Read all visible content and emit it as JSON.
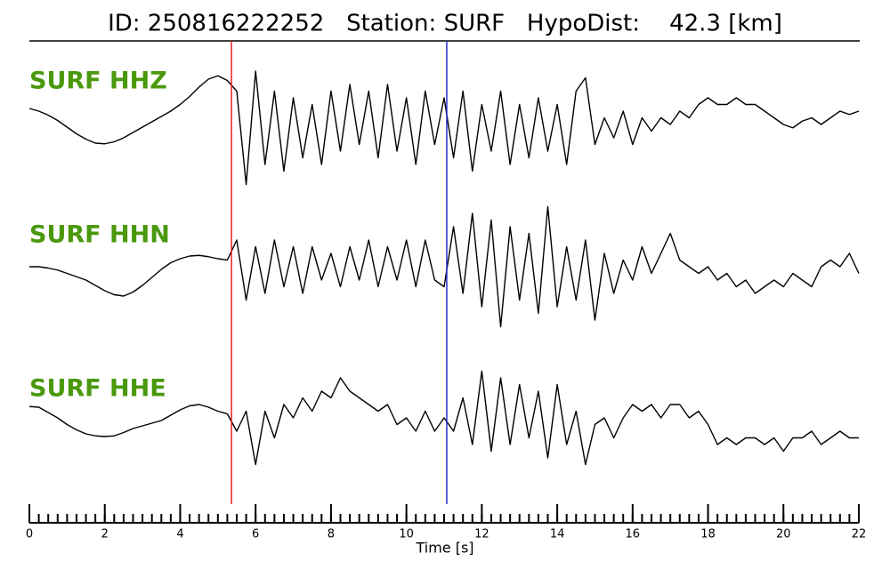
{
  "chart_data": {
    "type": "line",
    "title": "ID: 250816222252   Station: SURF   HypoDist:    42.3 [km]",
    "xlabel": "Time [s]",
    "xlim": [
      0,
      22
    ],
    "xticks": [
      0,
      2,
      4,
      6,
      8,
      10,
      12,
      14,
      16,
      18,
      20,
      22
    ],
    "xminorticks": [
      0,
      0.25,
      0.5,
      0.75,
      1,
      1.25,
      1.5,
      1.75,
      2,
      2.25,
      2.5,
      2.75,
      3,
      3.25,
      3.5,
      3.75,
      4,
      4.25,
      4.5,
      4.75,
      5,
      5.25,
      5.5,
      5.75,
      6,
      6.25,
      6.5,
      6.75,
      7,
      7.25,
      7.5,
      7.75,
      8,
      8.25,
      8.5,
      8.75,
      9,
      9.25,
      9.5,
      9.75,
      10,
      10.25,
      10.5,
      10.75,
      11,
      11.25,
      11.5,
      11.75,
      12,
      12.25,
      12.5,
      12.75,
      13,
      13.25,
      13.5,
      13.75,
      14,
      14.25,
      14.5,
      14.75,
      15,
      15.25,
      15.5,
      15.75,
      16,
      16.25,
      16.5,
      16.75,
      17,
      17.25,
      17.5,
      17.75,
      18,
      18.25,
      18.5,
      18.75,
      19,
      19.25,
      19.5,
      19.75,
      20,
      20.25,
      20.5,
      20.75,
      21,
      21.25,
      21.5,
      21.75,
      22
    ],
    "ylim": [
      -1,
      1
    ],
    "label_color": "#4a990c",
    "x": [
      0,
      0.25,
      0.5,
      0.75,
      1,
      1.25,
      1.5,
      1.75,
      2,
      2.25,
      2.5,
      2.75,
      3,
      3.25,
      3.5,
      3.75,
      4,
      4.25,
      4.5,
      4.75,
      5,
      5.25,
      5.5,
      5.75,
      6,
      6.25,
      6.5,
      6.75,
      7,
      7.25,
      7.5,
      7.75,
      8,
      8.25,
      8.5,
      8.75,
      9,
      9.25,
      9.5,
      9.75,
      10,
      10.25,
      10.5,
      10.75,
      11,
      11.25,
      11.5,
      11.75,
      12,
      12.25,
      12.5,
      12.75,
      13,
      13.25,
      13.5,
      13.75,
      14,
      14.25,
      14.5,
      14.75,
      15,
      15.25,
      15.5,
      15.75,
      16,
      16.25,
      16.5,
      16.75,
      17,
      17.25,
      17.5,
      17.75,
      18,
      18.25,
      18.5,
      18.75,
      19,
      19.25,
      19.5,
      19.75,
      20,
      20.25,
      20.5,
      20.75,
      21,
      21.25,
      21.5,
      21.75,
      22
    ],
    "series": [
      {
        "name": "SURF HHZ",
        "color": "#000000",
        "values": [
          0.24,
          0.2,
          0.14,
          0.06,
          -0.04,
          -0.14,
          -0.22,
          -0.28,
          -0.29,
          -0.26,
          -0.2,
          -0.12,
          -0.04,
          0.04,
          0.12,
          0.2,
          0.3,
          0.42,
          0.56,
          0.68,
          0.73,
          0.66,
          0.5,
          -0.9,
          0.8,
          -0.6,
          0.5,
          -0.7,
          0.4,
          -0.5,
          0.3,
          -0.6,
          0.5,
          -0.4,
          0.6,
          -0.3,
          0.5,
          -0.5,
          0.6,
          -0.4,
          0.4,
          -0.6,
          0.5,
          -0.3,
          0.4,
          -0.5,
          0.5,
          -0.7,
          0.3,
          -0.4,
          0.5,
          -0.6,
          0.3,
          -0.5,
          0.4,
          -0.4,
          0.3,
          -0.6,
          0.5,
          0.7,
          -0.3,
          0.1,
          -0.2,
          0.2,
          -0.3,
          0.1,
          -0.1,
          0.1,
          0.0,
          0.2,
          0.1,
          0.3,
          0.4,
          0.3,
          0.3,
          0.4,
          0.3,
          0.3,
          0.2,
          0.1,
          0.0,
          -0.05,
          0.05,
          0.1,
          0.0,
          0.1,
          0.2,
          0.15,
          0.2
        ]
      },
      {
        "name": "SURF HHN",
        "color": "#000000",
        "values": [
          0.0,
          0.0,
          -0.02,
          -0.05,
          -0.1,
          -0.15,
          -0.2,
          -0.28,
          -0.36,
          -0.42,
          -0.44,
          -0.38,
          -0.28,
          -0.16,
          -0.04,
          0.06,
          0.12,
          0.16,
          0.17,
          0.15,
          0.12,
          0.1,
          0.4,
          -0.5,
          0.3,
          -0.4,
          0.4,
          -0.3,
          0.3,
          -0.4,
          0.3,
          -0.2,
          0.2,
          -0.3,
          0.3,
          -0.2,
          0.4,
          -0.3,
          0.3,
          -0.2,
          0.4,
          -0.3,
          0.4,
          -0.2,
          -0.3,
          0.6,
          -0.4,
          0.8,
          -0.6,
          0.7,
          -0.9,
          0.6,
          -0.5,
          0.5,
          -0.7,
          0.9,
          -0.6,
          0.3,
          -0.5,
          0.4,
          -0.8,
          0.2,
          -0.4,
          0.1,
          -0.2,
          0.3,
          -0.1,
          0.2,
          0.5,
          0.1,
          0.0,
          -0.1,
          0.0,
          -0.2,
          -0.1,
          -0.3,
          -0.2,
          -0.4,
          -0.3,
          -0.2,
          -0.3,
          -0.1,
          -0.2,
          -0.3,
          0.0,
          0.1,
          0.0,
          0.2,
          -0.1
        ]
      },
      {
        "name": "SURF HHE",
        "color": "#000000",
        "values": [
          0.17,
          0.16,
          0.08,
          0.0,
          -0.1,
          -0.18,
          -0.24,
          -0.27,
          -0.28,
          -0.27,
          -0.22,
          -0.16,
          -0.12,
          -0.08,
          -0.04,
          0.04,
          0.12,
          0.18,
          0.2,
          0.16,
          0.1,
          0.06,
          -0.2,
          0.1,
          -0.7,
          0.1,
          -0.3,
          0.2,
          0.0,
          0.3,
          0.1,
          0.4,
          0.3,
          0.6,
          0.4,
          0.3,
          0.2,
          0.1,
          0.2,
          -0.1,
          0.0,
          -0.2,
          0.1,
          -0.2,
          0.0,
          -0.2,
          0.3,
          -0.4,
          0.7,
          -0.5,
          0.6,
          -0.4,
          0.5,
          -0.3,
          0.4,
          -0.6,
          0.5,
          -0.4,
          0.1,
          -0.7,
          -0.1,
          0.0,
          -0.3,
          0.0,
          0.2,
          0.1,
          0.2,
          0.0,
          0.2,
          0.2,
          0.0,
          0.1,
          -0.1,
          -0.4,
          -0.3,
          -0.4,
          -0.3,
          -0.3,
          -0.4,
          -0.3,
          -0.5,
          -0.3,
          -0.3,
          -0.2,
          -0.4,
          -0.3,
          -0.2,
          -0.3,
          -0.3
        ]
      }
    ],
    "markers": [
      {
        "x": 5.36,
        "color": "#e8231f"
      },
      {
        "x": 11.07,
        "color": "#2a2ad0"
      }
    ]
  }
}
